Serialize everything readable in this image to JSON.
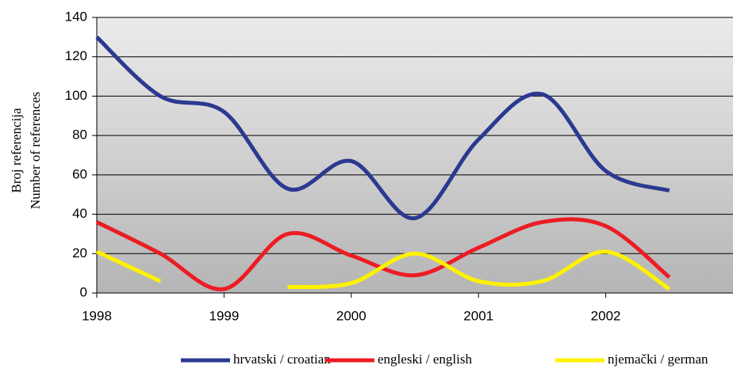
{
  "chart_data": {
    "type": "line",
    "ylabel": [
      "Broj referencija",
      "Number of references"
    ],
    "x": [
      1998,
      1998.5,
      1999,
      1999.5,
      2000,
      2000.5,
      2001,
      2001.5,
      2002,
      2002.5
    ],
    "series": [
      {
        "name": "hrvatski / croatian",
        "color": "#2b3990",
        "values": [
          130,
          100,
          92,
          53,
          67,
          38,
          78,
          101,
          62,
          52
        ]
      },
      {
        "name": "engleski / english",
        "color": "#ed1c24",
        "values": [
          36,
          20,
          2,
          30,
          19,
          9,
          23,
          36,
          34,
          8
        ]
      },
      {
        "name": "njemački / german",
        "color": "#fff200",
        "values": [
          21,
          6,
          null,
          3,
          5,
          20,
          6,
          6,
          21,
          2
        ]
      }
    ],
    "xlim": [
      1998,
      2003
    ],
    "xticks": [
      1998,
      1999,
      2000,
      2001,
      2002
    ],
    "ylim": [
      0,
      140
    ],
    "yticks": [
      0,
      20,
      40,
      60,
      80,
      100,
      120,
      140
    ],
    "grid": true,
    "legend": "bottom"
  }
}
